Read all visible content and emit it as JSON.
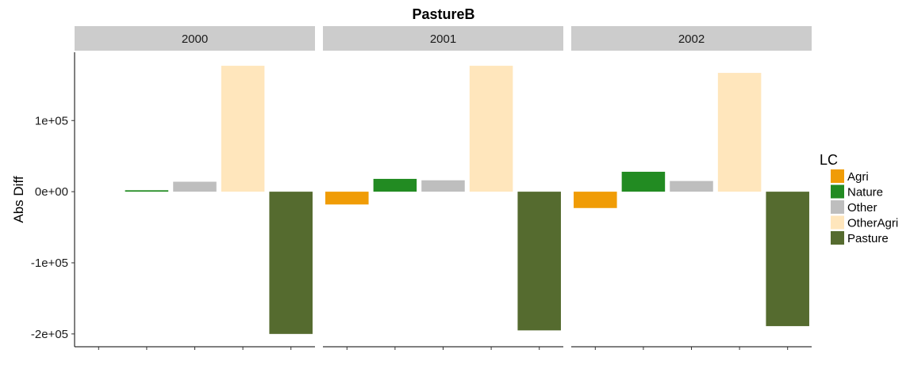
{
  "chart_data": {
    "type": "bar",
    "title": "PastureB",
    "ylabel": "Abs Diff",
    "xlabel": "",
    "facets": [
      "2000",
      "2001",
      "2002"
    ],
    "categories": [
      "Agri",
      "Nature",
      "Other",
      "OtherAgri",
      "Pasture"
    ],
    "ylim": [
      -218000,
      196000
    ],
    "yticks": [
      100000,
      0,
      -100000,
      -200000
    ],
    "ytick_labels": [
      "1e+05",
      "0e+00",
      "-1e+05",
      "-2e+05"
    ],
    "values": {
      "2000": [
        0,
        2000,
        14000,
        177000,
        -200000
      ],
      "2001": [
        -18000,
        18000,
        16000,
        177000,
        -195000
      ],
      "2002": [
        -23000,
        28000,
        15000,
        167000,
        -189000
      ]
    },
    "legend": {
      "title": "LC",
      "position": "right",
      "items": [
        "Agri",
        "Nature",
        "Other",
        "OtherAgri",
        "Pasture"
      ]
    },
    "colors": {
      "Agri": "#f09c06",
      "Nature": "#228b22",
      "Other": "#bebebe",
      "OtherAgri": "#ffe6bc",
      "Pasture": "#556b2f"
    },
    "strip_color": "#cccccc",
    "grid": false
  }
}
